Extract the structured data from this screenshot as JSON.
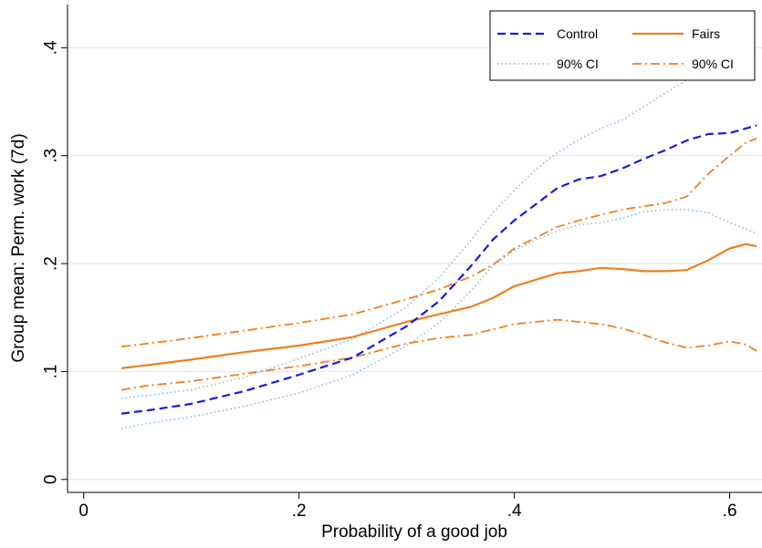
{
  "chart_data": {
    "type": "line",
    "title": "",
    "xlabel": "Probability of a good job",
    "ylabel": "Group mean: Perm. work (7d)",
    "xlim": [
      -0.015,
      0.63
    ],
    "ylim": [
      -0.012,
      0.44
    ],
    "x_ticks": [
      {
        "value": 0,
        "label": "0"
      },
      {
        "value": 0.2,
        "label": ".2"
      },
      {
        "value": 0.4,
        "label": ".4"
      },
      {
        "value": 0.6,
        "label": ".6"
      }
    ],
    "y_ticks": [
      {
        "value": 0,
        "label": "0"
      },
      {
        "value": 0.1,
        "label": ".1"
      },
      {
        "value": 0.2,
        "label": ".2"
      },
      {
        "value": 0.3,
        "label": ".3"
      },
      {
        "value": 0.4,
        "label": ".4"
      }
    ],
    "grid": true,
    "legend_position": "top-right",
    "legend": [
      {
        "series": "control",
        "label": "Control"
      },
      {
        "series": "fairs",
        "label": "Fairs"
      },
      {
        "series": "control_ci_low",
        "label": "90% CI"
      },
      {
        "series": "fairs_ci_low",
        "label": "90% CI"
      }
    ],
    "series": [
      {
        "id": "control",
        "name": "Control",
        "color": "#1a1adc",
        "style": "dashed",
        "points": [
          [
            0.035,
            0.061
          ],
          [
            0.06,
            0.064
          ],
          [
            0.1,
            0.07
          ],
          [
            0.15,
            0.082
          ],
          [
            0.2,
            0.097
          ],
          [
            0.25,
            0.113
          ],
          [
            0.3,
            0.142
          ],
          [
            0.33,
            0.165
          ],
          [
            0.36,
            0.198
          ],
          [
            0.38,
            0.222
          ],
          [
            0.4,
            0.24
          ],
          [
            0.42,
            0.255
          ],
          [
            0.44,
            0.27
          ],
          [
            0.46,
            0.278
          ],
          [
            0.48,
            0.281
          ],
          [
            0.5,
            0.288
          ],
          [
            0.52,
            0.297
          ],
          [
            0.54,
            0.305
          ],
          [
            0.56,
            0.314
          ],
          [
            0.58,
            0.32
          ],
          [
            0.6,
            0.321
          ],
          [
            0.625,
            0.328
          ]
        ]
      },
      {
        "id": "control_ci_low",
        "name": "90% CI",
        "color": "#7fb8e6",
        "style": "dotted",
        "points": [
          [
            0.035,
            0.047
          ],
          [
            0.06,
            0.052
          ],
          [
            0.1,
            0.058
          ],
          [
            0.15,
            0.068
          ],
          [
            0.2,
            0.08
          ],
          [
            0.25,
            0.097
          ],
          [
            0.3,
            0.124
          ],
          [
            0.33,
            0.145
          ],
          [
            0.36,
            0.175
          ],
          [
            0.38,
            0.198
          ],
          [
            0.4,
            0.212
          ],
          [
            0.42,
            0.222
          ],
          [
            0.44,
            0.23
          ],
          [
            0.46,
            0.236
          ],
          [
            0.48,
            0.238
          ],
          [
            0.5,
            0.242
          ],
          [
            0.52,
            0.248
          ],
          [
            0.54,
            0.25
          ],
          [
            0.56,
            0.25
          ],
          [
            0.58,
            0.247
          ],
          [
            0.6,
            0.238
          ],
          [
            0.625,
            0.228
          ]
        ]
      },
      {
        "id": "control_ci_high",
        "name": "",
        "color": "#7fb8e6",
        "style": "dotted",
        "points": [
          [
            0.035,
            0.075
          ],
          [
            0.06,
            0.078
          ],
          [
            0.1,
            0.083
          ],
          [
            0.15,
            0.095
          ],
          [
            0.2,
            0.112
          ],
          [
            0.25,
            0.13
          ],
          [
            0.3,
            0.16
          ],
          [
            0.33,
            0.187
          ],
          [
            0.36,
            0.222
          ],
          [
            0.38,
            0.247
          ],
          [
            0.4,
            0.268
          ],
          [
            0.42,
            0.287
          ],
          [
            0.44,
            0.303
          ],
          [
            0.46,
            0.315
          ],
          [
            0.48,
            0.325
          ],
          [
            0.5,
            0.333
          ],
          [
            0.52,
            0.345
          ],
          [
            0.54,
            0.358
          ],
          [
            0.56,
            0.37
          ],
          [
            0.575,
            0.378
          ]
        ]
      },
      {
        "id": "fairs",
        "name": "Fairs",
        "color": "#f07f1e",
        "style": "solid",
        "points": [
          [
            0.035,
            0.103
          ],
          [
            0.06,
            0.106
          ],
          [
            0.1,
            0.111
          ],
          [
            0.15,
            0.118
          ],
          [
            0.2,
            0.124
          ],
          [
            0.25,
            0.132
          ],
          [
            0.3,
            0.146
          ],
          [
            0.33,
            0.153
          ],
          [
            0.36,
            0.16
          ],
          [
            0.38,
            0.168
          ],
          [
            0.4,
            0.179
          ],
          [
            0.42,
            0.185
          ],
          [
            0.44,
            0.191
          ],
          [
            0.46,
            0.193
          ],
          [
            0.48,
            0.196
          ],
          [
            0.5,
            0.195
          ],
          [
            0.52,
            0.193
          ],
          [
            0.54,
            0.193
          ],
          [
            0.56,
            0.194
          ],
          [
            0.58,
            0.203
          ],
          [
            0.6,
            0.214
          ],
          [
            0.615,
            0.218
          ],
          [
            0.625,
            0.216
          ]
        ]
      },
      {
        "id": "fairs_ci_low",
        "name": "90% CI",
        "color": "#f07f1e",
        "style": "dashdot",
        "points": [
          [
            0.035,
            0.083
          ],
          [
            0.06,
            0.087
          ],
          [
            0.1,
            0.091
          ],
          [
            0.15,
            0.098
          ],
          [
            0.2,
            0.105
          ],
          [
            0.25,
            0.113
          ],
          [
            0.3,
            0.126
          ],
          [
            0.33,
            0.131
          ],
          [
            0.36,
            0.134
          ],
          [
            0.38,
            0.139
          ],
          [
            0.4,
            0.144
          ],
          [
            0.42,
            0.146
          ],
          [
            0.44,
            0.148
          ],
          [
            0.46,
            0.146
          ],
          [
            0.48,
            0.144
          ],
          [
            0.5,
            0.14
          ],
          [
            0.52,
            0.134
          ],
          [
            0.54,
            0.127
          ],
          [
            0.56,
            0.122
          ],
          [
            0.58,
            0.124
          ],
          [
            0.6,
            0.128
          ],
          [
            0.615,
            0.125
          ],
          [
            0.625,
            0.119
          ]
        ]
      },
      {
        "id": "fairs_ci_high",
        "name": "",
        "color": "#f07f1e",
        "style": "dashdot",
        "points": [
          [
            0.035,
            0.123
          ],
          [
            0.06,
            0.126
          ],
          [
            0.1,
            0.131
          ],
          [
            0.15,
            0.138
          ],
          [
            0.2,
            0.145
          ],
          [
            0.25,
            0.153
          ],
          [
            0.3,
            0.167
          ],
          [
            0.33,
            0.176
          ],
          [
            0.36,
            0.188
          ],
          [
            0.38,
            0.199
          ],
          [
            0.4,
            0.214
          ],
          [
            0.42,
            0.224
          ],
          [
            0.44,
            0.234
          ],
          [
            0.46,
            0.24
          ],
          [
            0.48,
            0.245
          ],
          [
            0.5,
            0.25
          ],
          [
            0.52,
            0.253
          ],
          [
            0.54,
            0.256
          ],
          [
            0.56,
            0.262
          ],
          [
            0.58,
            0.283
          ],
          [
            0.6,
            0.3
          ],
          [
            0.615,
            0.312
          ],
          [
            0.625,
            0.316
          ]
        ]
      }
    ]
  }
}
